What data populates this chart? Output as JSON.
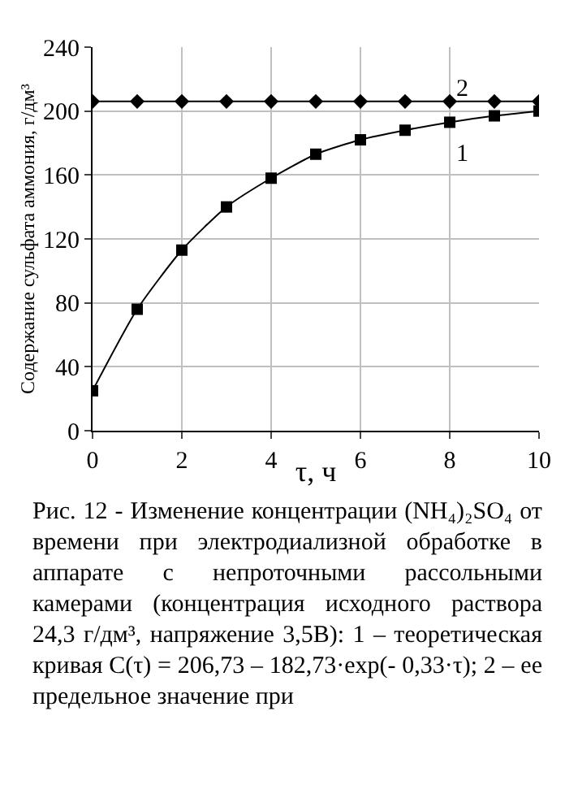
{
  "chart_data": {
    "type": "line",
    "xlabel": "τ, ч",
    "ylabel": "Содержание сульфата аммония, г/дм³",
    "x": [
      0,
      1,
      2,
      3,
      4,
      5,
      6,
      7,
      8,
      9,
      10
    ],
    "series": [
      {
        "name": "1",
        "color": "#000000",
        "marker": "square",
        "values": [
          25,
          76,
          113,
          140,
          158,
          173,
          182,
          188,
          193,
          197,
          200
        ]
      },
      {
        "name": "2",
        "color": "#000000",
        "marker": "diamond",
        "values": [
          206,
          206,
          206,
          206,
          206,
          206,
          206,
          206,
          206,
          206,
          206
        ]
      }
    ],
    "xlim": [
      0,
      10
    ],
    "xticks": [
      0,
      2,
      4,
      6,
      8,
      10
    ],
    "ylim": [
      0,
      240
    ],
    "yticks": [
      0,
      40,
      80,
      120,
      160,
      200,
      240
    ],
    "grid": true,
    "legend": false,
    "annotations": [
      "Рис. 12 - Изменение концентрации (NH₄)₂SO₄ от времени при электродиализной обработке в аппарате с непроточными рассольными камерами (концентрация исходного раствора 24,3 г/дм³, напряжение 3,5В): 1 – теоретическая кривая С(τ) = 206,73 – 182,73·exp(- 0,33·τ); 2 – ее предельное значение при"
    ]
  }
}
